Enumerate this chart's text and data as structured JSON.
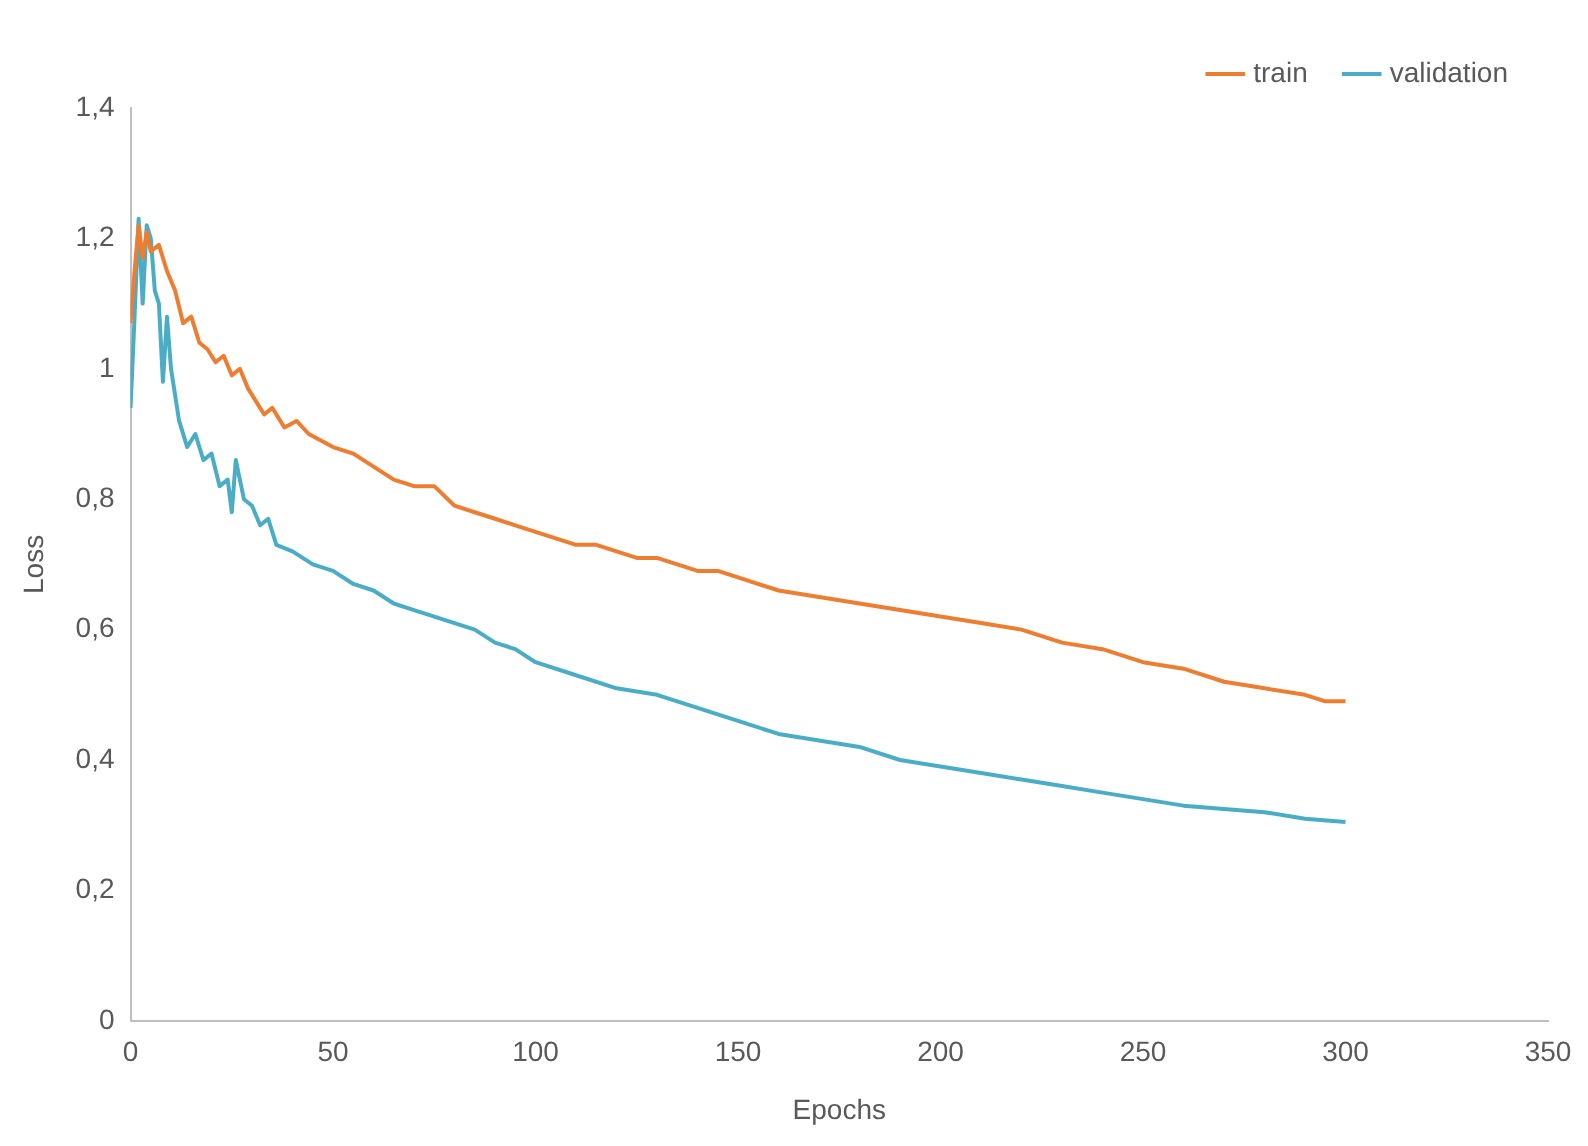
{
  "chart_data": {
    "type": "line",
    "xlabel": "Epochs",
    "ylabel": "Loss",
    "xlim": [
      0,
      350
    ],
    "xticks": [
      0,
      50,
      100,
      150,
      200,
      250,
      300,
      350
    ],
    "ylim": [
      0,
      1.4
    ],
    "yticks": [
      0,
      {
        "value": 0.2,
        "label": "0,2"
      },
      {
        "value": 0.4,
        "label": "0,4"
      },
      {
        "value": 0.6,
        "label": "0,6"
      },
      {
        "value": 0.8,
        "label": "0,8"
      },
      1,
      {
        "value": 1.2,
        "label": "1,2"
      },
      {
        "value": 1.4,
        "label": "1,4"
      }
    ],
    "grid": false,
    "legend": "top right",
    "marker": "none",
    "line_style": "solid",
    "series": [
      {
        "name": "train",
        "color": "#ed7d31",
        "x": [
          0,
          1,
          2,
          3,
          4,
          5,
          7,
          9,
          11,
          13,
          15,
          17,
          19,
          21,
          23,
          25,
          27,
          29,
          31,
          33,
          35,
          38,
          41,
          44,
          47,
          50,
          55,
          60,
          65,
          70,
          75,
          80,
          85,
          90,
          95,
          100,
          105,
          110,
          115,
          120,
          125,
          130,
          135,
          140,
          145,
          150,
          160,
          170,
          180,
          190,
          200,
          210,
          220,
          230,
          240,
          250,
          260,
          270,
          280,
          290,
          295,
          300
        ],
        "values": [
          1.07,
          1.15,
          1.22,
          1.17,
          1.21,
          1.18,
          1.19,
          1.15,
          1.12,
          1.07,
          1.08,
          1.04,
          1.03,
          1.01,
          1.02,
          0.99,
          1.0,
          0.97,
          0.95,
          0.93,
          0.94,
          0.91,
          0.92,
          0.9,
          0.89,
          0.88,
          0.87,
          0.85,
          0.83,
          0.82,
          0.82,
          0.79,
          0.78,
          0.77,
          0.76,
          0.75,
          0.74,
          0.73,
          0.73,
          0.72,
          0.71,
          0.71,
          0.7,
          0.69,
          0.69,
          0.68,
          0.66,
          0.65,
          0.64,
          0.63,
          0.62,
          0.61,
          0.6,
          0.58,
          0.57,
          0.55,
          0.54,
          0.52,
          0.51,
          0.5,
          0.49,
          0.49
        ]
      },
      {
        "name": "validation",
        "color": "#4bacc6",
        "x": [
          0,
          1,
          2,
          3,
          4,
          5,
          6,
          7,
          8,
          9,
          10,
          12,
          14,
          16,
          18,
          20,
          22,
          24,
          25,
          26,
          28,
          30,
          32,
          34,
          36,
          40,
          45,
          50,
          55,
          60,
          65,
          70,
          75,
          80,
          85,
          90,
          95,
          100,
          110,
          120,
          130,
          140,
          150,
          160,
          170,
          180,
          190,
          200,
          210,
          220,
          230,
          240,
          250,
          260,
          270,
          280,
          290,
          300
        ],
        "values": [
          0.94,
          1.08,
          1.23,
          1.1,
          1.22,
          1.2,
          1.12,
          1.1,
          0.98,
          1.08,
          1.0,
          0.92,
          0.88,
          0.9,
          0.86,
          0.87,
          0.82,
          0.83,
          0.78,
          0.86,
          0.8,
          0.79,
          0.76,
          0.77,
          0.73,
          0.72,
          0.7,
          0.69,
          0.67,
          0.66,
          0.64,
          0.63,
          0.62,
          0.61,
          0.6,
          0.58,
          0.57,
          0.55,
          0.53,
          0.51,
          0.5,
          0.48,
          0.46,
          0.44,
          0.43,
          0.42,
          0.4,
          0.39,
          0.38,
          0.37,
          0.36,
          0.35,
          0.34,
          0.33,
          0.325,
          0.32,
          0.31,
          0.305
        ]
      }
    ]
  }
}
